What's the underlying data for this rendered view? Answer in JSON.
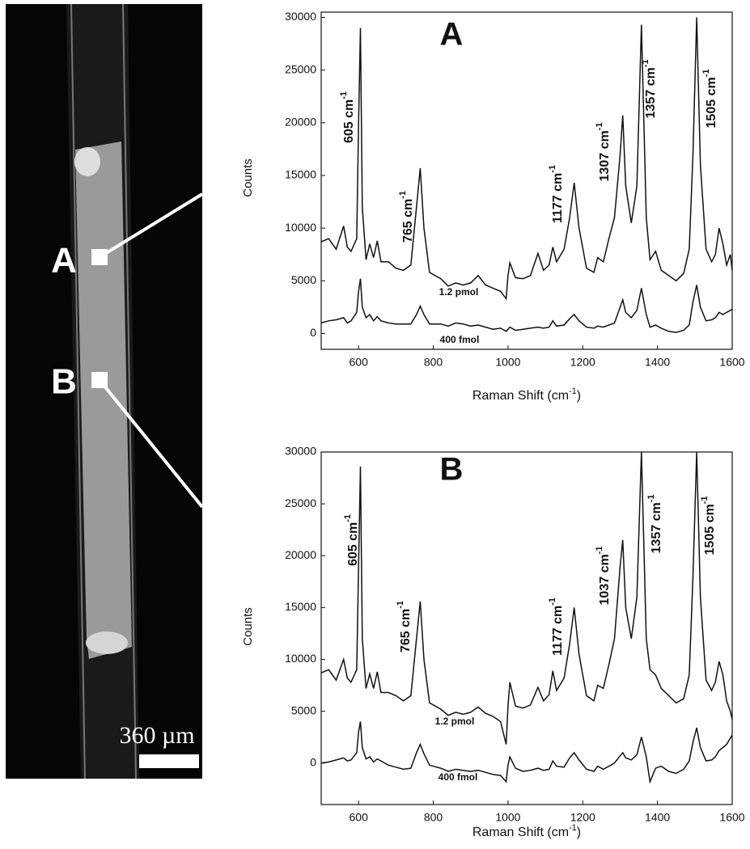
{
  "image": {
    "labels": [
      "A",
      "B"
    ],
    "scale_bar": "360 µm"
  },
  "chart_data": [
    {
      "type": "line",
      "title": "A",
      "ylabel": "Counts",
      "xlabel": {
        "text": "Raman Shift (cm",
        "sup": "-1",
        "tail": ")"
      },
      "xlim": [
        500,
        1600
      ],
      "ylim": [
        -1500,
        30500
      ],
      "xticks": [
        600,
        800,
        1000,
        1200,
        1400,
        1600
      ],
      "yticks": [
        0,
        5000,
        10000,
        15000,
        20000,
        25000,
        30000
      ],
      "x": [
        500,
        520,
        540,
        560,
        570,
        580,
        595,
        600,
        605,
        610,
        620,
        630,
        640,
        650,
        660,
        680,
        700,
        720,
        740,
        755,
        765,
        775,
        790,
        820,
        840,
        860,
        880,
        900,
        920,
        940,
        960,
        980,
        995,
        1000,
        1005,
        1020,
        1040,
        1060,
        1080,
        1095,
        1110,
        1120,
        1130,
        1150,
        1165,
        1177,
        1190,
        1210,
        1230,
        1240,
        1255,
        1270,
        1285,
        1300,
        1307,
        1315,
        1330,
        1345,
        1357,
        1370,
        1380,
        1395,
        1410,
        1430,
        1450,
        1470,
        1485,
        1495,
        1505,
        1515,
        1530,
        1545,
        1555,
        1565,
        1575,
        1585,
        1595,
        1600
      ],
      "series": [
        {
          "name": "1.2 pmol",
          "color": "#111111",
          "values": [
            8700,
            9000,
            8000,
            10200,
            8200,
            7800,
            9000,
            20000,
            29000,
            12000,
            7000,
            8500,
            7200,
            8800,
            6800,
            6800,
            6200,
            6000,
            6500,
            12000,
            15700,
            10000,
            5800,
            5200,
            4500,
            4800,
            4600,
            4800,
            5500,
            4600,
            4300,
            4000,
            3300,
            5500,
            6700,
            5300,
            5200,
            5500,
            7600,
            6000,
            6500,
            8200,
            6800,
            8000,
            11000,
            14300,
            10000,
            6200,
            5800,
            7200,
            6800,
            9000,
            11000,
            17000,
            20700,
            14000,
            10500,
            14000,
            29300,
            11000,
            7000,
            7800,
            6000,
            5500,
            5000,
            5700,
            8000,
            17000,
            30000,
            16000,
            8000,
            6800,
            7500,
            10000,
            8500,
            6500,
            7500,
            6000
          ]
        },
        {
          "name": "400 fmol",
          "color": "#111111",
          "values": [
            1000,
            1200,
            1300,
            1500,
            1000,
            1200,
            2000,
            4000,
            5200,
            2500,
            1500,
            1800,
            1200,
            1600,
            1200,
            1000,
            900,
            900,
            900,
            1800,
            2600,
            1800,
            900,
            900,
            700,
            1000,
            900,
            700,
            800,
            600,
            400,
            500,
            200,
            400,
            600,
            300,
            400,
            500,
            600,
            500,
            600,
            1200,
            700,
            800,
            1400,
            1800,
            1200,
            600,
            500,
            700,
            600,
            800,
            1000,
            2500,
            3200,
            2000,
            1500,
            2200,
            4300,
            1800,
            600,
            800,
            500,
            200,
            100,
            300,
            800,
            3000,
            4600,
            2500,
            1200,
            1300,
            1500,
            2000,
            1800,
            2000,
            2200,
            2300
          ]
        }
      ],
      "annotations": [
        {
          "text": "605 cm",
          "sup": "-1"
        },
        {
          "text": "765 cm",
          "sup": "-1"
        },
        {
          "text": "1177 cm",
          "sup": "-1"
        },
        {
          "text": "1307 cm",
          "sup": "-1"
        },
        {
          "text": "1357 cm",
          "sup": "-1"
        },
        {
          "text": "1505 cm",
          "sup": "-1"
        }
      ]
    },
    {
      "type": "line",
      "title": "B",
      "ylabel": "Counts",
      "xlabel": {
        "text": "Raman Shift (cm",
        "sup": "-1",
        "tail": ")"
      },
      "xlim": [
        500,
        1600
      ],
      "ylim": [
        -4000,
        30000
      ],
      "xticks": [
        600,
        800,
        1000,
        1200,
        1400,
        1600
      ],
      "yticks": [
        0,
        5000,
        10000,
        15000,
        20000,
        25000,
        30000
      ],
      "x": [
        500,
        520,
        540,
        560,
        570,
        580,
        595,
        600,
        605,
        610,
        620,
        630,
        640,
        650,
        660,
        680,
        700,
        720,
        740,
        755,
        765,
        775,
        790,
        820,
        840,
        860,
        880,
        900,
        920,
        940,
        960,
        980,
        995,
        1000,
        1005,
        1020,
        1040,
        1060,
        1080,
        1095,
        1110,
        1120,
        1130,
        1150,
        1165,
        1177,
        1190,
        1210,
        1230,
        1240,
        1255,
        1270,
        1285,
        1300,
        1307,
        1315,
        1330,
        1345,
        1357,
        1370,
        1380,
        1395,
        1410,
        1430,
        1450,
        1470,
        1485,
        1495,
        1505,
        1515,
        1530,
        1545,
        1555,
        1565,
        1575,
        1585,
        1595,
        1600
      ],
      "series": [
        {
          "name": "1.2 pmol",
          "color": "#111111",
          "values": [
            8700,
            9000,
            8000,
            10000,
            8200,
            7800,
            9000,
            19000,
            28600,
            12000,
            7200,
            8600,
            7200,
            8800,
            6800,
            6800,
            6500,
            6000,
            6500,
            12000,
            15600,
            10000,
            5800,
            5200,
            4600,
            4900,
            4700,
            4900,
            5400,
            4800,
            4500,
            4000,
            1800,
            5500,
            7800,
            5500,
            5300,
            5600,
            7300,
            6000,
            6600,
            8900,
            7000,
            8200,
            11500,
            15000,
            10500,
            6500,
            6000,
            7500,
            7200,
            9500,
            12000,
            19000,
            21500,
            15000,
            12000,
            16000,
            30000,
            12000,
            9000,
            8500,
            7200,
            6500,
            5800,
            6200,
            8500,
            18000,
            30000,
            16000,
            8000,
            7000,
            7800,
            9800,
            8500,
            6000,
            5000,
            4200
          ]
        },
        {
          "name": "400 fmol",
          "color": "#111111",
          "values": [
            0,
            100,
            300,
            500,
            200,
            300,
            1000,
            3000,
            4000,
            1500,
            400,
            600,
            100,
            400,
            200,
            -200,
            -400,
            -600,
            -500,
            1000,
            1800,
            900,
            -200,
            -500,
            -800,
            -600,
            -700,
            -800,
            -700,
            -900,
            -1100,
            -1200,
            -1800,
            -200,
            600,
            -500,
            -800,
            -700,
            -500,
            -700,
            -600,
            200,
            -300,
            -400,
            500,
            1000,
            300,
            -600,
            -800,
            -300,
            -600,
            -300,
            0,
            700,
            1000,
            500,
            300,
            800,
            2500,
            600,
            -1800,
            -500,
            -300,
            -800,
            -1000,
            -600,
            200,
            2000,
            3400,
            1500,
            200,
            300,
            600,
            1200,
            1500,
            1800,
            2400,
            2700
          ]
        }
      ],
      "annotations": [
        {
          "text": "605 cm",
          "sup": "-1"
        },
        {
          "text": "765 cm",
          "sup": "-1"
        },
        {
          "text": "1177 cm",
          "sup": "-1"
        },
        {
          "text": "1037 cm",
          "sup": "-1"
        },
        {
          "text": "1357 cm",
          "sup": "-1"
        },
        {
          "text": "1505 cm",
          "sup": "-1"
        }
      ]
    }
  ]
}
